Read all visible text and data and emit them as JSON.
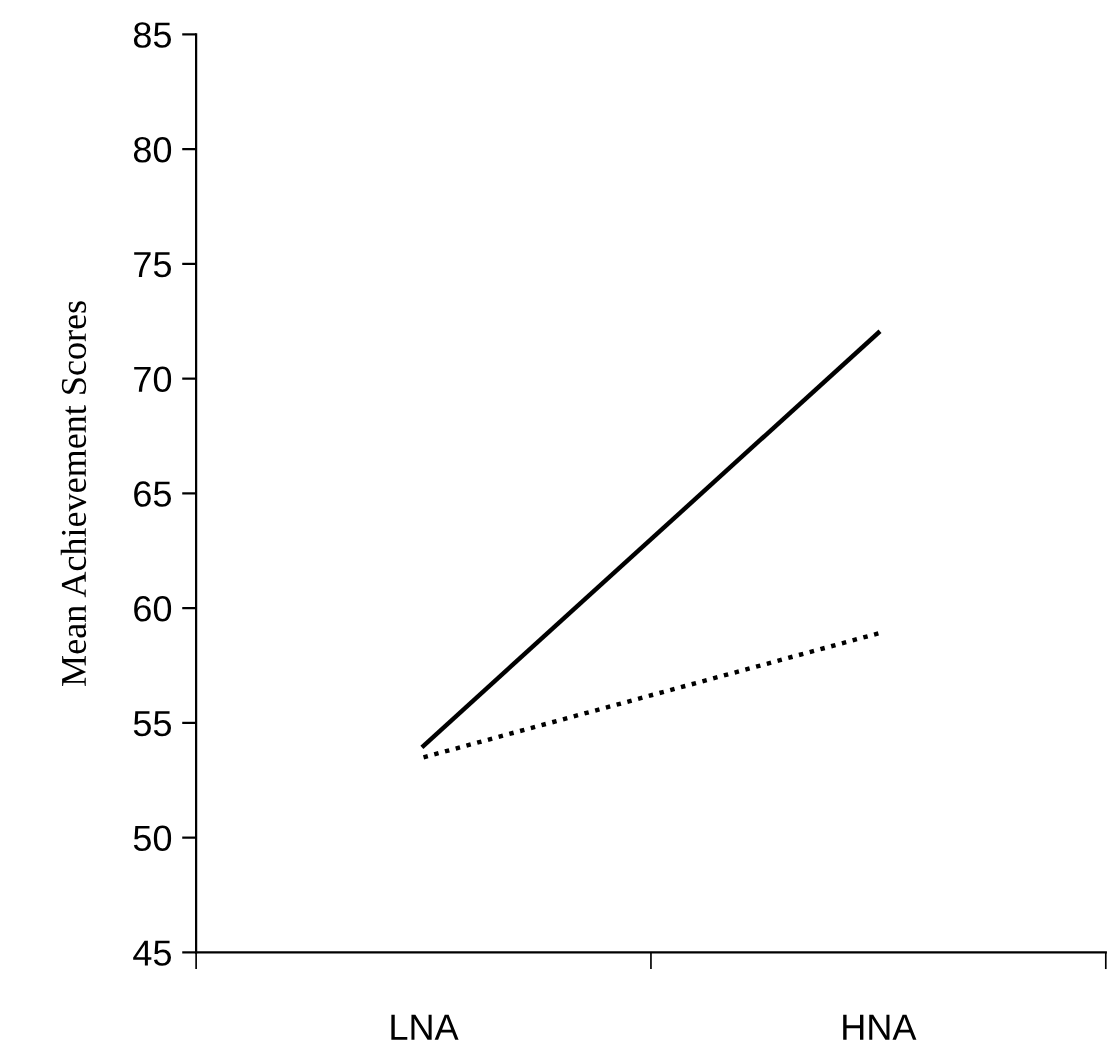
{
  "chart_data": {
    "type": "line",
    "ylabel": "Mean Achievement Scores",
    "categories": [
      "LNA",
      "HNA"
    ],
    "series": [
      {
        "color": "#000000",
        "line_style": "solid",
        "values": [
          54,
          72
        ]
      },
      {
        "color": "#000000",
        "line_style": "dotted",
        "values": [
          53.5,
          58.9
        ]
      }
    ],
    "ylim": [
      45,
      85
    ],
    "yticks": [
      45,
      50,
      55,
      60,
      65,
      70,
      75,
      80,
      85
    ],
    "grid": false,
    "legend": false,
    "marker": "none"
  }
}
